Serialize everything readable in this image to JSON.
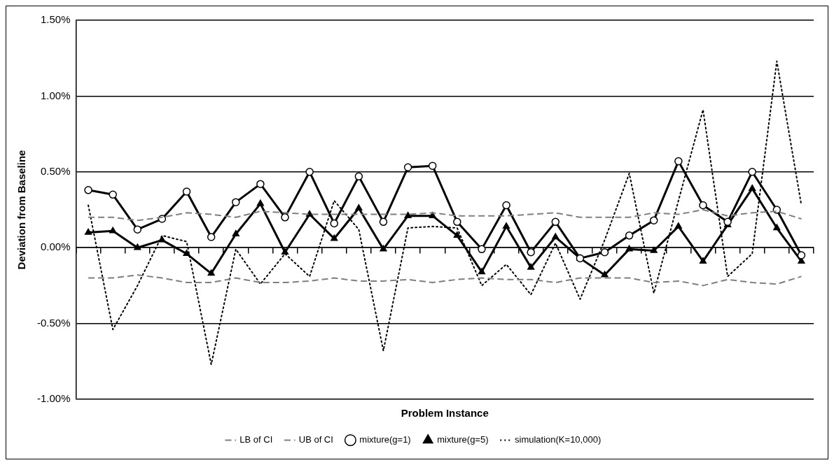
{
  "chart_data": {
    "type": "line",
    "xlabel": "Problem Instance",
    "ylabel": "Deviation from Baseline",
    "categories": [
      null,
      null,
      null,
      null,
      null,
      null,
      null,
      null,
      null,
      null,
      null,
      null,
      null,
      null,
      null,
      null,
      null,
      null,
      null,
      null,
      null,
      null,
      null,
      null,
      null,
      null,
      null,
      null,
      null,
      null
    ],
    "ylim": [
      -1,
      1.5
    ],
    "yticks": [
      {
        "value": -1,
        "label": "-1.00%"
      },
      {
        "value": -0.5,
        "label": "-0.50%"
      },
      {
        "value": 0,
        "label": "0.00%"
      },
      {
        "value": 0.5,
        "label": "0.50%"
      },
      {
        "value": 1,
        "label": "1.00%"
      },
      {
        "value": 1.5,
        "label": "1.50%"
      }
    ],
    "grid": "y",
    "legend": "bottom",
    "series": [
      {
        "name": "LB of CI",
        "color": "#7f7f7f",
        "line_style": "dashed",
        "marker": "none",
        "values": [
          -0.2,
          -0.2,
          -0.18,
          -0.2,
          -0.23,
          -0.23,
          -0.2,
          -0.23,
          -0.23,
          -0.22,
          -0.2,
          -0.22,
          -0.22,
          -0.21,
          -0.23,
          -0.21,
          -0.2,
          -0.21,
          -0.21,
          -0.23,
          -0.2,
          -0.2,
          -0.2,
          -0.23,
          -0.22,
          -0.25,
          -0.21,
          -0.23,
          -0.24,
          -0.19
        ]
      },
      {
        "name": "UB of CI",
        "color": "#7f7f7f",
        "line_style": "dashed",
        "marker": "none",
        "values": [
          0.2,
          0.2,
          0.18,
          0.2,
          0.23,
          0.22,
          0.2,
          0.24,
          0.23,
          0.22,
          0.22,
          0.22,
          0.22,
          0.22,
          0.23,
          0.21,
          0.21,
          0.21,
          0.22,
          0.23,
          0.2,
          0.2,
          0.2,
          0.23,
          0.22,
          0.25,
          0.21,
          0.23,
          0.24,
          0.19
        ]
      },
      {
        "name": "mixture(g=1)",
        "color": "#000000",
        "line_style": "solid",
        "marker": "circle",
        "values": [
          0.38,
          0.35,
          0.12,
          0.19,
          0.37,
          0.07,
          0.3,
          0.42,
          0.2,
          0.5,
          0.16,
          0.47,
          0.17,
          0.53,
          0.54,
          0.17,
          -0.01,
          0.28,
          -0.03,
          0.17,
          -0.07,
          -0.03,
          0.08,
          0.18,
          0.57,
          0.28,
          0.17,
          0.5,
          0.25,
          -0.05
        ]
      },
      {
        "name": "mixture(g=5)",
        "color": "#000000",
        "line_style": "solid",
        "marker": "triangle",
        "values": [
          0.1,
          0.11,
          0,
          0.05,
          -0.04,
          -0.17,
          0.09,
          0.29,
          -0.03,
          0.22,
          0.06,
          0.26,
          -0.01,
          0.21,
          0.21,
          0.08,
          -0.16,
          0.14,
          -0.13,
          0.07,
          -0.07,
          -0.18,
          -0.01,
          -0.02,
          0.14,
          -0.09,
          0.15,
          0.39,
          0.13,
          -0.09
        ]
      },
      {
        "name": "simulation(K=10,000)",
        "color": "#000000",
        "line_style": "dotted",
        "marker": "none",
        "values": [
          0.28,
          -0.54,
          -0.25,
          0.08,
          0.04,
          -0.77,
          -0.01,
          -0.24,
          -0.04,
          -0.19,
          0.31,
          0.12,
          -0.68,
          0.13,
          0.14,
          0.13,
          -0.25,
          -0.11,
          -0.31,
          0.03,
          -0.34,
          0.05,
          0.49,
          -0.3,
          0.31,
          0.91,
          -0.19,
          -0.04,
          1.23,
          0.28
        ]
      }
    ]
  }
}
